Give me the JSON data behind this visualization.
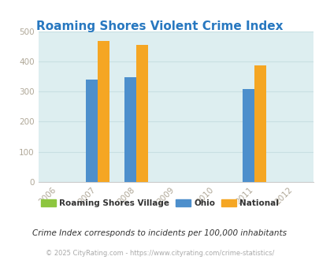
{
  "title": "Roaming Shores Violent Crime Index",
  "title_color": "#2878c0",
  "years": [
    2006,
    2007,
    2008,
    2009,
    2010,
    2011,
    2012
  ],
  "bar_data": {
    "roaming_shores": {
      "2007": 0,
      "2008": 0,
      "2011": 0
    },
    "ohio": {
      "2007": 340,
      "2008": 348,
      "2011": 308
    },
    "national": {
      "2007": 468,
      "2008": 455,
      "2011": 386
    }
  },
  "colors": {
    "roaming_shores": "#8dc63f",
    "ohio": "#4d8fcc",
    "national": "#f5a623"
  },
  "ylim": [
    0,
    500
  ],
  "yticks": [
    0,
    100,
    200,
    300,
    400,
    500
  ],
  "bg_color": "#ddeef0",
  "grid_color": "#c8dfe2",
  "legend_labels": [
    "Roaming Shores Village",
    "Ohio",
    "National"
  ],
  "footer1": "Crime Index corresponds to incidents per 100,000 inhabitants",
  "footer2": "© 2025 CityRating.com - https://www.cityrating.com/crime-statistics/",
  "bar_width": 0.3,
  "plot_years": [
    2007,
    2008,
    2011
  ]
}
